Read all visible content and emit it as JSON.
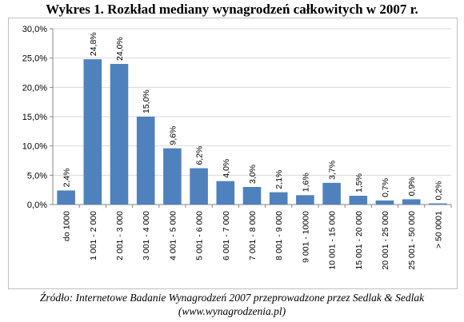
{
  "chart_data": {
    "type": "bar",
    "title": "Wykres 1. Rozkład mediany wynagrodzeń całkowitych w 2007 r.",
    "categories": [
      "do 1000",
      "1 001 - 2 000",
      "2 001 - 3 000",
      "3 001 - 4 000",
      "4 001 - 5 000",
      "5 001 - 6 000",
      "6 001 - 7 000",
      "7 001 - 8 000",
      "8 001 - 9 000",
      "9 001 - 10000",
      "10 001 - 15 000",
      "15 001 - 20 000",
      "20 001 - 25 000",
      "25 001 - 50 000",
      "> 50 0001"
    ],
    "values": [
      2.4,
      24.8,
      24.0,
      15.0,
      9.6,
      6.2,
      4.0,
      3.0,
      2.1,
      1.6,
      3.7,
      1.5,
      0.7,
      0.9,
      0.2
    ],
    "value_labels": [
      "2,4%",
      "24,8%",
      "24,0%",
      "15,0%",
      "9,6%",
      "6,2%",
      "4,0%",
      "3,0%",
      "2,1%",
      "1,6%",
      "3,7%",
      "1,5%",
      "0,7%",
      "0,9%",
      "0,2%"
    ],
    "y_ticks": [
      0,
      5,
      10,
      15,
      20,
      25,
      30
    ],
    "y_tick_labels": [
      "0,0%",
      "5,0%",
      "10,0%",
      "15,0%",
      "20,0%",
      "25,0%",
      "30,0%"
    ],
    "ylim": [
      0,
      30
    ],
    "grid": true,
    "bar_color": "#4f81bd",
    "grid_color": "#d9d9d9"
  },
  "source": {
    "line1": "Źródło: Internetowe Badanie Wynagrodzeń 2007 przeprowadzone przez Sedlak & Sedlak",
    "line2": "(www.wynagrodzenia.pl)"
  }
}
